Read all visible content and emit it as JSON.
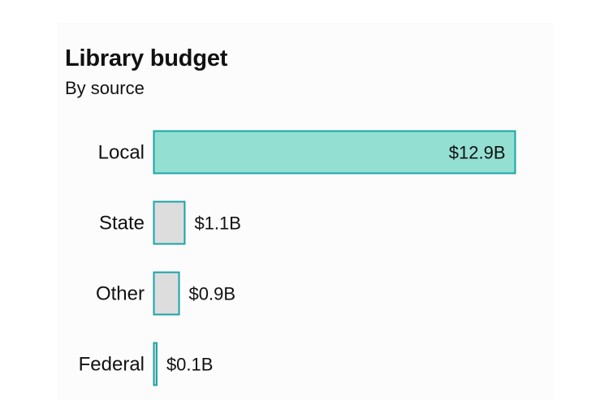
{
  "chart_data": {
    "type": "bar",
    "orientation": "horizontal",
    "title": "Library budget",
    "subtitle": "By source",
    "categories": [
      "Local",
      "State",
      "Other",
      "Federal"
    ],
    "values": [
      12.9,
      1.1,
      0.9,
      0.1
    ],
    "value_labels": [
      "$12.9B",
      "$1.1B",
      "$0.9B",
      "$0.1B"
    ],
    "unit": "billion USD",
    "xlim": [
      0,
      12.9
    ],
    "grid": false,
    "legend": "none",
    "colors": {
      "highlight_fill": "#93e0d3",
      "default_fill": "#dddddd",
      "stroke": "#1aa3a9"
    },
    "highlight_index": 0
  }
}
